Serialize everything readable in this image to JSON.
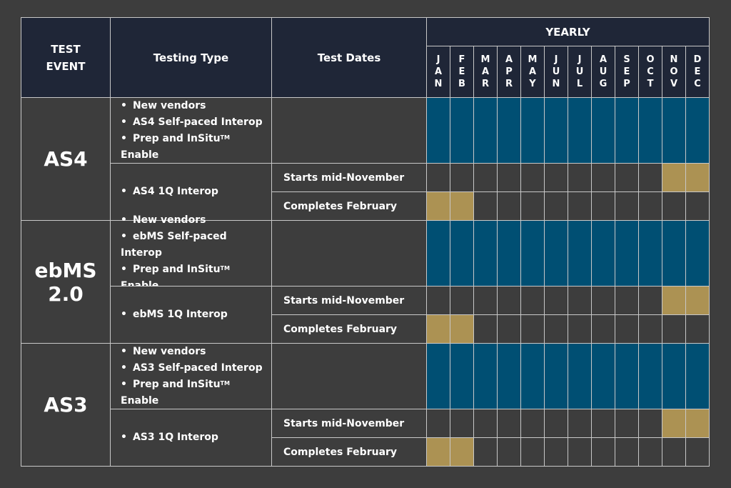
{
  "header": {
    "test_event": "TEST\nEVENT",
    "testing_type": "Testing Type",
    "test_dates": "Test Dates",
    "yearly": "YEARLY",
    "months": [
      "JAN",
      "FEB",
      "MAR",
      "APR",
      "MAY",
      "JUN",
      "JUL",
      "AUG",
      "SEP",
      "OCT",
      "NOV",
      "DEC"
    ]
  },
  "colors": {
    "background": "#3d3d3d",
    "header": "#1f2637",
    "year_round": "#004f73",
    "interop_window": "#ac9253",
    "grid_line": "#c8c8c8"
  },
  "events": [
    {
      "name": "AS4",
      "self_paced": {
        "items": [
          "New vendors",
          "AS4 Self-paced Interop",
          "Prep and InSitu™ Enable"
        ],
        "active_months": [
          "JAN",
          "FEB",
          "MAR",
          "APR",
          "MAY",
          "JUN",
          "JUL",
          "AUG",
          "SEP",
          "OCT",
          "NOV",
          "DEC"
        ]
      },
      "interop": {
        "label": "AS4 1Q Interop",
        "rows": [
          {
            "date": "Starts mid-November",
            "active_months": [
              "NOV",
              "DEC"
            ]
          },
          {
            "date": "Completes February",
            "active_months": [
              "JAN",
              "FEB"
            ]
          }
        ]
      }
    },
    {
      "name": "ebMS\n2.0",
      "self_paced": {
        "items": [
          "New vendors",
          "ebMS Self-paced Interop",
          "Prep and InSitu™ Enable"
        ],
        "active_months": [
          "JAN",
          "FEB",
          "MAR",
          "APR",
          "MAY",
          "JUN",
          "JUL",
          "AUG",
          "SEP",
          "OCT",
          "NOV",
          "DEC"
        ]
      },
      "interop": {
        "label": "ebMS 1Q Interop",
        "rows": [
          {
            "date": "Starts mid-November",
            "active_months": [
              "NOV",
              "DEC"
            ]
          },
          {
            "date": "Completes February",
            "active_months": [
              "JAN",
              "FEB"
            ]
          }
        ]
      }
    },
    {
      "name": "AS3",
      "self_paced": {
        "items": [
          "New vendors",
          "AS3 Self-paced Interop",
          "Prep and InSitu™ Enable"
        ],
        "active_months": [
          "JAN",
          "FEB",
          "MAR",
          "APR",
          "MAY",
          "JUN",
          "JUL",
          "AUG",
          "SEP",
          "OCT",
          "NOV",
          "DEC"
        ]
      },
      "interop": {
        "label": "AS3 1Q Interop",
        "rows": [
          {
            "date": "Starts mid-November",
            "active_months": [
              "NOV",
              "DEC"
            ]
          },
          {
            "date": "Completes February",
            "active_months": [
              "JAN",
              "FEB"
            ]
          }
        ]
      }
    }
  ]
}
